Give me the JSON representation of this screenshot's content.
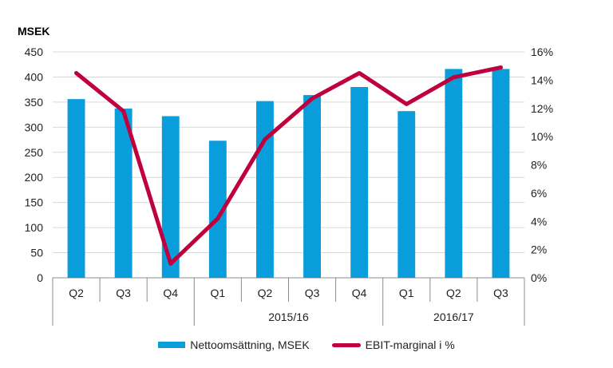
{
  "chart_data": {
    "type": "bar",
    "unit_label": "MSEK",
    "categories": [
      "Q2",
      "Q3",
      "Q4",
      "Q1",
      "Q2",
      "Q3",
      "Q4",
      "Q1",
      "Q2",
      "Q3"
    ],
    "year_groups": [
      {
        "label": "",
        "span": 3
      },
      {
        "label": "2015/16",
        "span": 4
      },
      {
        "label": "2016/17",
        "span": 3
      }
    ],
    "series": [
      {
        "name": "Nettoomsättning, MSEK",
        "type": "bar",
        "axis": "left",
        "color": "#0a9ddc",
        "values": [
          356,
          337,
          322,
          273,
          352,
          364,
          380,
          332,
          416,
          416
        ]
      },
      {
        "name": "EBIT-marginal i %",
        "type": "line",
        "axis": "right",
        "color": "#c0003c",
        "values": [
          14.5,
          11.8,
          1.0,
          4.2,
          9.8,
          12.7,
          14.5,
          12.3,
          14.2,
          14.9
        ]
      }
    ],
    "y_left": {
      "min": 0,
      "max": 450,
      "ticks": [
        "0",
        "50",
        "100",
        "150",
        "200",
        "250",
        "300",
        "350",
        "400",
        "450"
      ]
    },
    "y_right": {
      "min": 0,
      "max": 16,
      "ticks": [
        "0%",
        "2%",
        "4%",
        "6%",
        "8%",
        "10%",
        "12%",
        "14%",
        "16%"
      ]
    },
    "grid": true,
    "legend_position": "bottom"
  }
}
